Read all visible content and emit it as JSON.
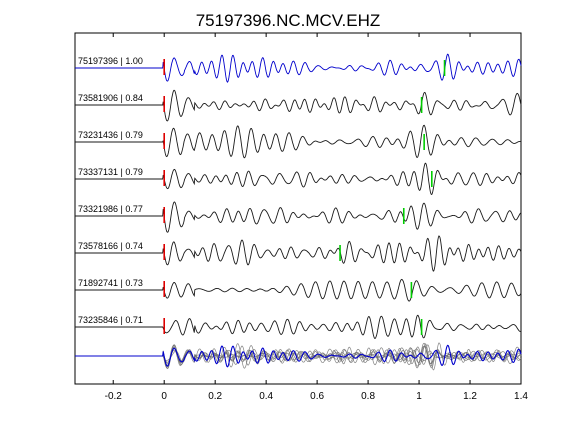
{
  "chart_data": {
    "type": "line",
    "title": "75197396.NC.MCV.EHZ",
    "xlabel": "",
    "ylabel": "",
    "xlim": [
      -0.35,
      1.4
    ],
    "x_ticks": [
      -0.2,
      0,
      0.2,
      0.4,
      0.6,
      0.8,
      1,
      1.2,
      1.4
    ],
    "x_tick_labels": [
      "-0.2",
      "0",
      "0.2",
      "0.4",
      "0.6",
      "0.8",
      "1",
      "1.2",
      "1.4"
    ],
    "grid": false,
    "legend": "none",
    "colors": {
      "reference_trace": "#0000cc",
      "trace": "#1a1a1a",
      "stack_traces": "#6e6e6e",
      "p_pick": "#dd0000",
      "s_pick": "#00cc00"
    },
    "traces": [
      {
        "label": "75197396 | 1.00",
        "event": "75197396",
        "correlation": 1.0,
        "p_pick": 0.0,
        "s_pick": 1.1,
        "reference": true
      },
      {
        "label": "73581906 | 0.84",
        "event": "73581906",
        "correlation": 0.84,
        "p_pick": 0.0,
        "s_pick": 1.01
      },
      {
        "label": "73231436 | 0.79",
        "event": "73231436",
        "correlation": 0.79,
        "p_pick": 0.0,
        "s_pick": 1.02
      },
      {
        "label": "73337131 | 0.79",
        "event": "73337131",
        "correlation": 0.79,
        "p_pick": 0.0,
        "s_pick": 1.05
      },
      {
        "label": "73321986 | 0.77",
        "event": "73321986",
        "correlation": 0.77,
        "p_pick": 0.0,
        "s_pick": 0.94
      },
      {
        "label": "73578166 | 0.74",
        "event": "73578166",
        "correlation": 0.74,
        "p_pick": 0.0,
        "s_pick": 0.69
      },
      {
        "label": "71892741 | 0.73",
        "event": "71892741",
        "correlation": 0.73,
        "p_pick": 0.0,
        "s_pick": 0.97
      },
      {
        "label": "73235846 | 0.71",
        "event": "73235846",
        "correlation": 0.71,
        "p_pick": 0.0,
        "s_pick": 1.01
      }
    ],
    "overlay": {
      "description_visible": false,
      "includes_all_traces": true
    }
  }
}
